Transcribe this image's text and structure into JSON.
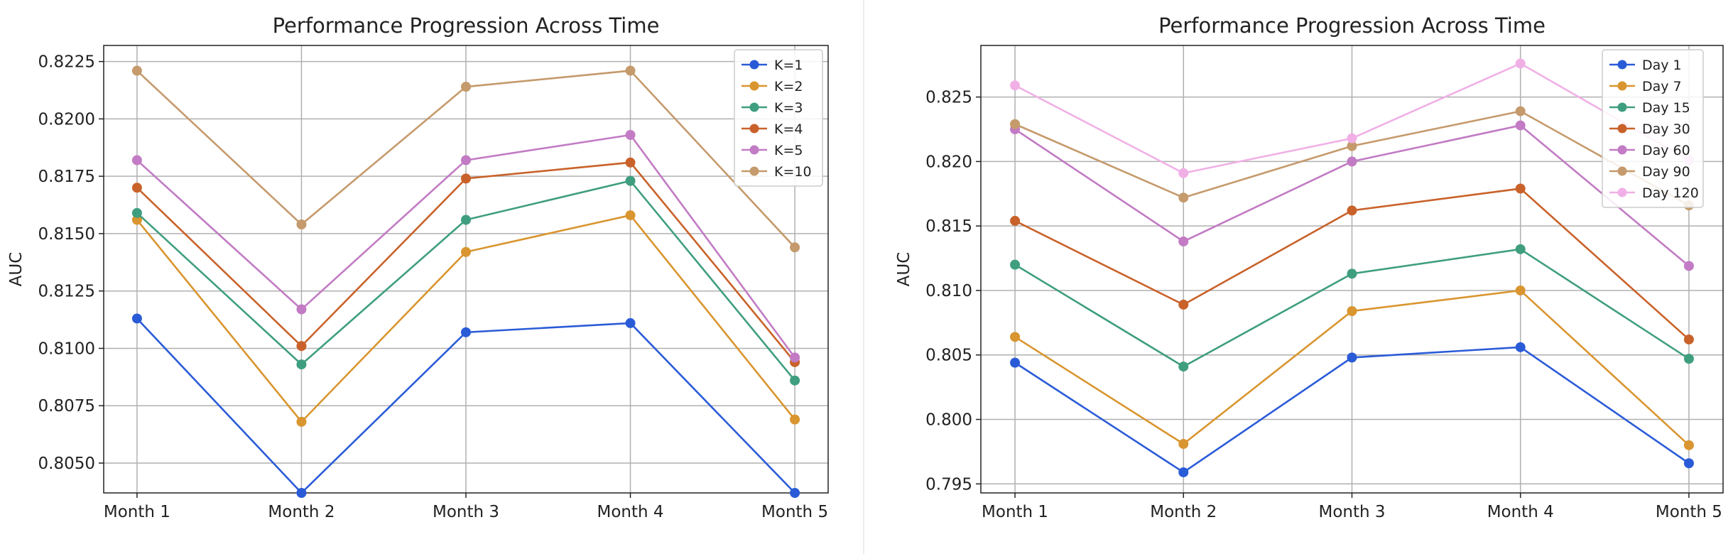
{
  "chart_data": [
    {
      "type": "line",
      "title": "Performance Progression Across Time",
      "xlabel": "",
      "ylabel": "AUC",
      "categories": [
        "Month 1",
        "Month 2",
        "Month 3",
        "Month 4",
        "Month 5"
      ],
      "ylim": [
        0.8037,
        0.8232
      ],
      "yticks": [
        0.805,
        0.8075,
        0.81,
        0.8125,
        0.815,
        0.8175,
        0.82,
        0.8225
      ],
      "ytick_labels": [
        "0.8050",
        "0.8075",
        "0.8100",
        "0.8125",
        "0.8150",
        "0.8175",
        "0.8200",
        "0.8225"
      ],
      "grid": true,
      "legend_position": "top-right",
      "series": [
        {
          "name": "K=1",
          "color": "#2a5bd7",
          "values": [
            0.8113,
            0.8037,
            0.8107,
            0.8111,
            0.8037
          ]
        },
        {
          "name": "K=2",
          "color": "#d9952f",
          "values": [
            0.8156,
            0.8068,
            0.8142,
            0.8158,
            0.8069
          ]
        },
        {
          "name": "K=3",
          "color": "#3f9e7f",
          "values": [
            0.8159,
            0.8093,
            0.8156,
            0.8173,
            0.8086
          ]
        },
        {
          "name": "K=4",
          "color": "#c9622a",
          "values": [
            0.817,
            0.8101,
            0.8174,
            0.8181,
            0.8094
          ]
        },
        {
          "name": "K=5",
          "color": "#c27bc4",
          "values": [
            0.8182,
            0.8117,
            0.8182,
            0.8193,
            0.8096
          ]
        },
        {
          "name": "K=10",
          "color": "#c59a6c",
          "values": [
            0.8221,
            0.8154,
            0.8214,
            0.8221,
            0.8144
          ]
        }
      ]
    },
    {
      "type": "line",
      "title": "Performance Progression Across Time",
      "xlabel": "",
      "ylabel": "AUC",
      "categories": [
        "Month 1",
        "Month 2",
        "Month 3",
        "Month 4",
        "Month 5"
      ],
      "ylim": [
        0.7943,
        0.829
      ],
      "yticks": [
        0.795,
        0.8,
        0.805,
        0.81,
        0.815,
        0.82,
        0.825
      ],
      "ytick_labels": [
        "0.795",
        "0.800",
        "0.805",
        "0.810",
        "0.815",
        "0.820",
        "0.825"
      ],
      "grid": true,
      "legend_position": "top-right",
      "series": [
        {
          "name": "Day 1",
          "color": "#2a5bd7",
          "values": [
            0.8044,
            0.7959,
            0.8048,
            0.8056,
            0.7966
          ]
        },
        {
          "name": "Day 7",
          "color": "#d9952f",
          "values": [
            0.8064,
            0.7981,
            0.8084,
            0.81,
            0.798
          ]
        },
        {
          "name": "Day 15",
          "color": "#3f9e7f",
          "values": [
            0.812,
            0.8041,
            0.8113,
            0.8132,
            0.8047
          ]
        },
        {
          "name": "Day 30",
          "color": "#c9622a",
          "values": [
            0.8154,
            0.8089,
            0.8162,
            0.8179,
            0.8062
          ]
        },
        {
          "name": "Day 60",
          "color": "#c27bc4",
          "values": [
            0.8225,
            0.8138,
            0.82,
            0.8228,
            0.8119
          ]
        },
        {
          "name": "Day 90",
          "color": "#c59a6c",
          "values": [
            0.8229,
            0.8172,
            0.8212,
            0.8239,
            0.8166
          ]
        },
        {
          "name": "Day 120",
          "color": "#f0b0e6",
          "values": [
            0.8259,
            0.8191,
            0.8218,
            0.8276,
            0.8201
          ]
        }
      ]
    }
  ]
}
